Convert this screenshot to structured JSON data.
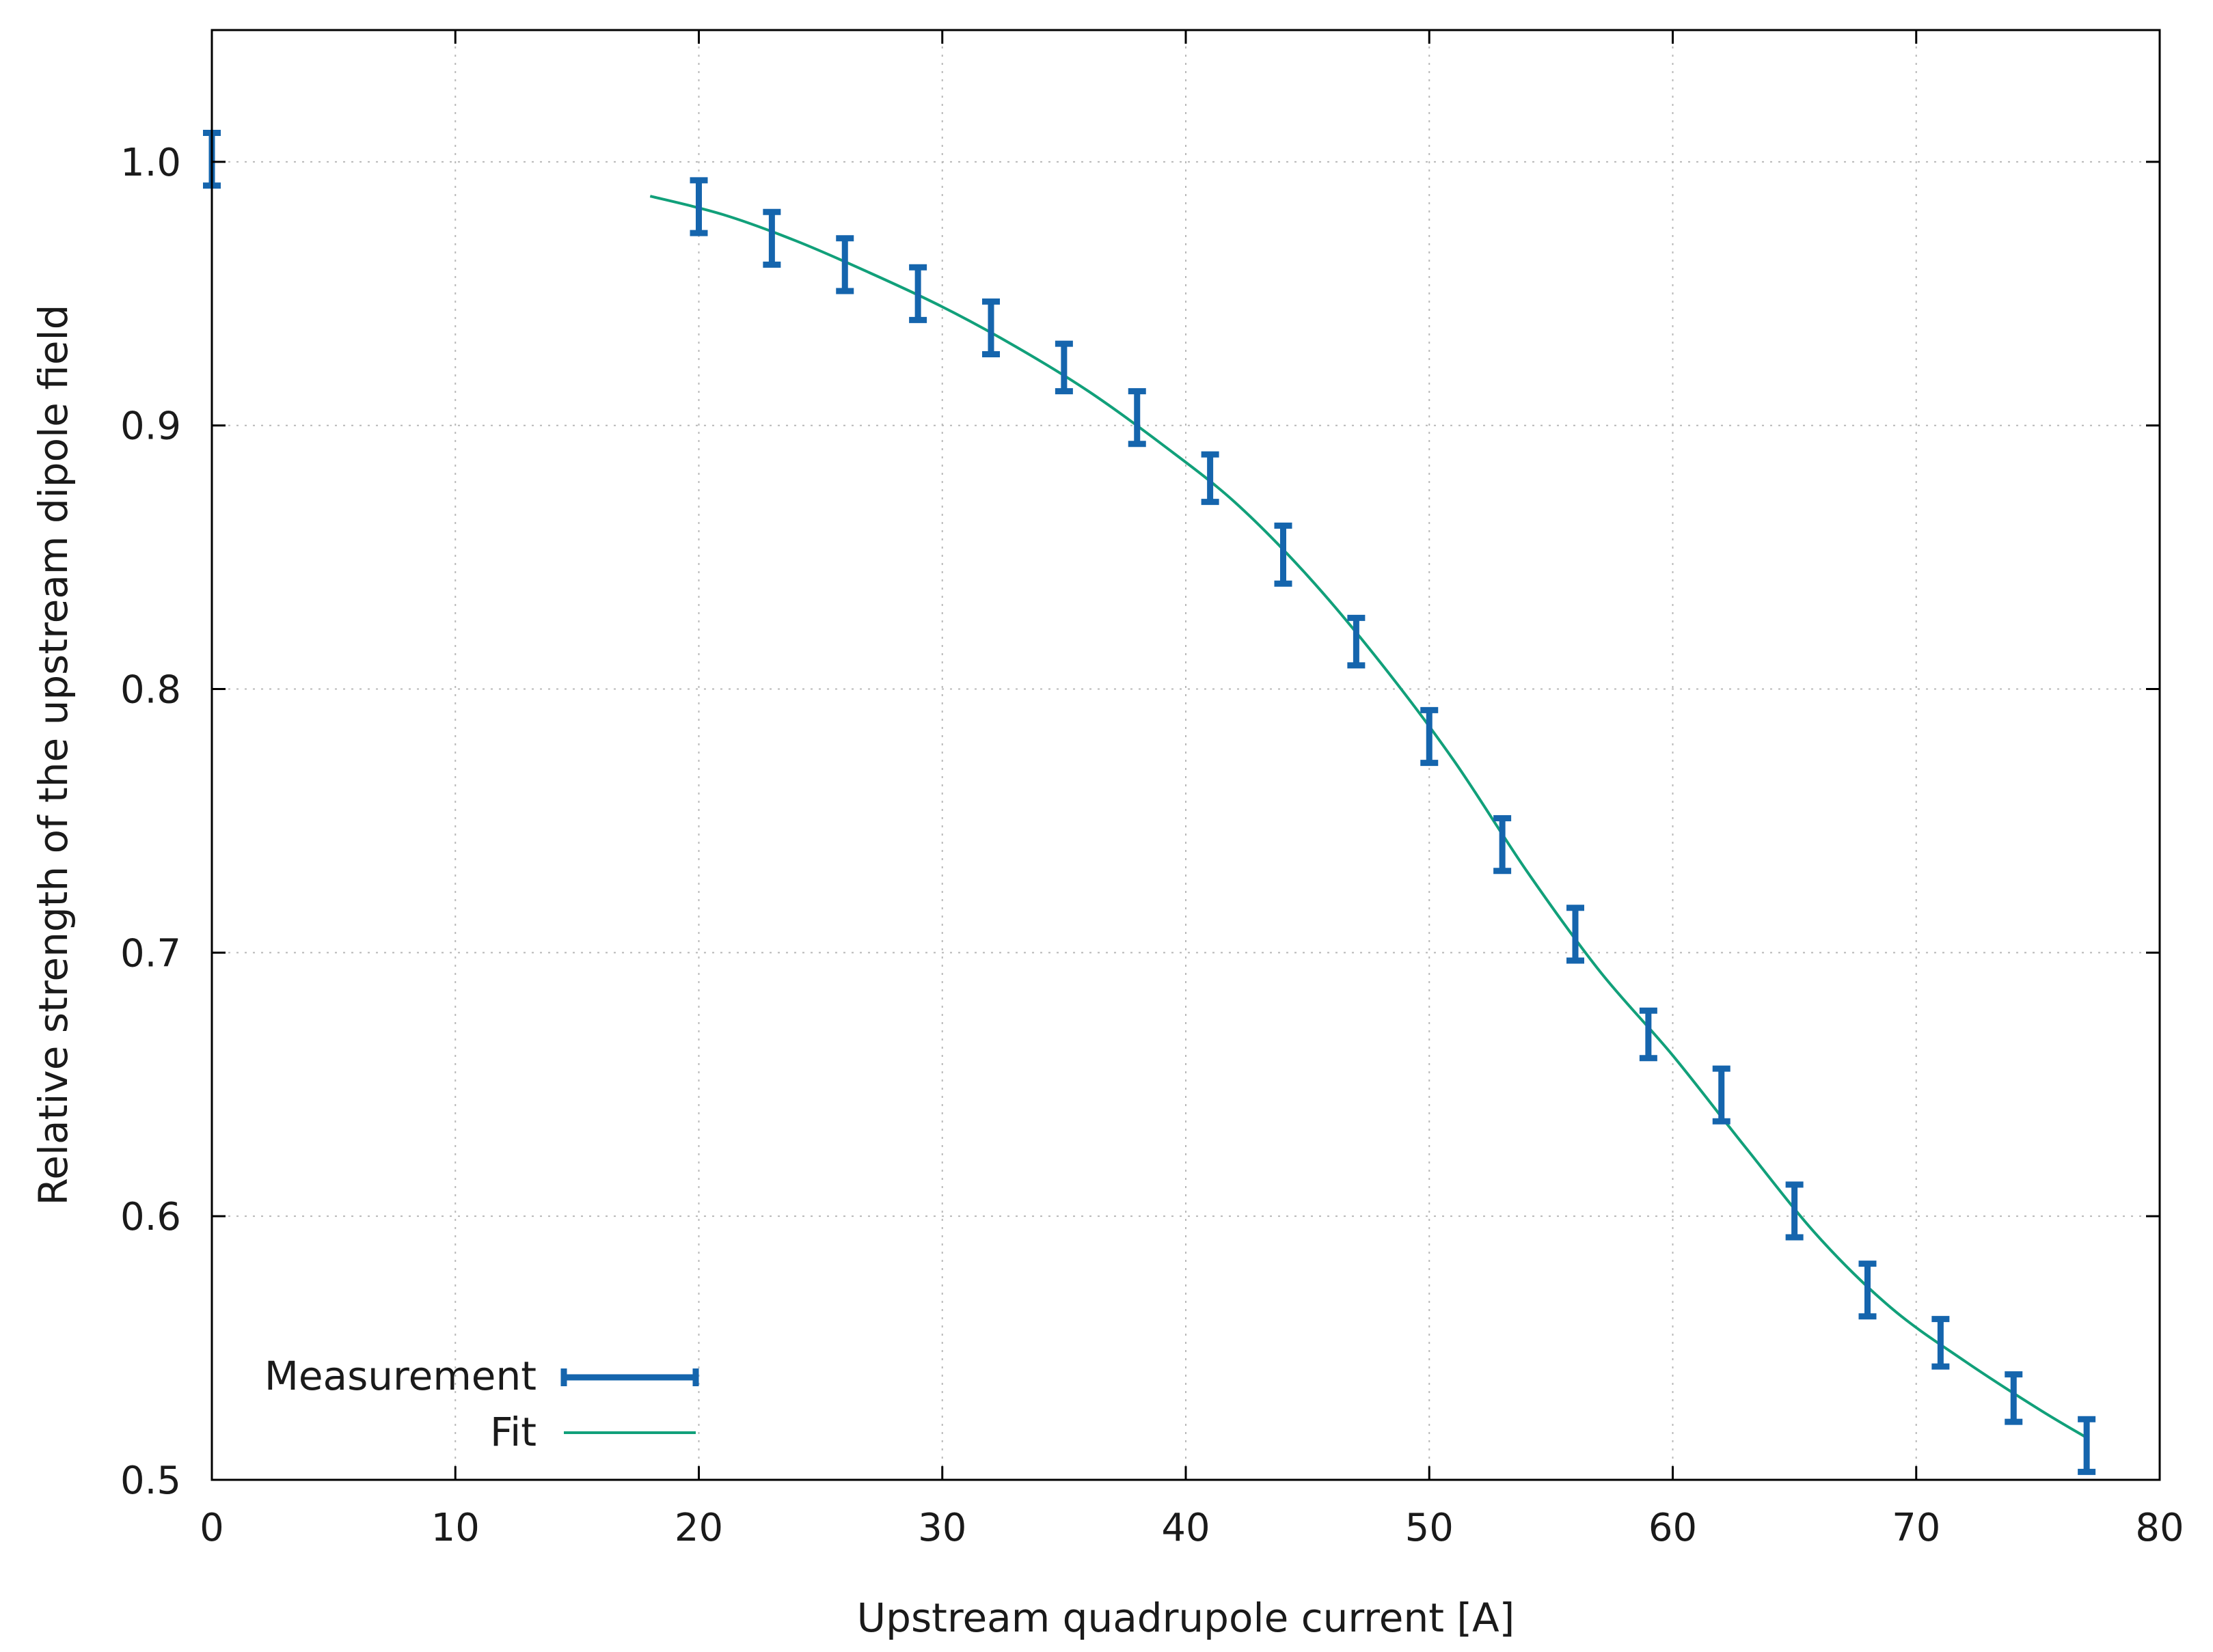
{
  "chart_data": {
    "type": "scatter",
    "title": "",
    "xlabel": "Upstream quadrupole current [A]",
    "ylabel": "Relative strength of the upstream dipole field",
    "xlim": [
      0,
      80
    ],
    "ylim": [
      0.5,
      1.05
    ],
    "grid": true,
    "legend_position": "bottom-left",
    "x_ticks": [
      0,
      10,
      20,
      30,
      40,
      50,
      60,
      70,
      80
    ],
    "x_tick_labels": [
      "0",
      "10",
      "20",
      "30",
      "40",
      "50",
      "60",
      "70",
      "80"
    ],
    "y_ticks": [
      0.5,
      0.6,
      0.7,
      0.8,
      0.9,
      1.0
    ],
    "y_tick_labels": [
      "0.5",
      "0.6",
      "0.7",
      "0.8",
      "0.9",
      "1.0"
    ],
    "series": [
      {
        "name": "Measurement",
        "type": "errorbars",
        "color": "#1565ad",
        "x": [
          0,
          20,
          23,
          26,
          29,
          32,
          35,
          38,
          41,
          44,
          47,
          50,
          53,
          56,
          59,
          62,
          65,
          68,
          71,
          74,
          77
        ],
        "y": [
          1.001,
          0.983,
          0.971,
          0.961,
          0.95,
          0.937,
          0.922,
          0.903,
          0.88,
          0.851,
          0.818,
          0.782,
          0.741,
          0.707,
          0.669,
          0.646,
          0.602,
          0.572,
          0.552,
          0.531,
          0.513
        ],
        "err": [
          0.01,
          0.01,
          0.01,
          0.01,
          0.01,
          0.01,
          0.009,
          0.01,
          0.009,
          0.011,
          0.009,
          0.01,
          0.01,
          0.01,
          0.009,
          0.01,
          0.01,
          0.01,
          0.009,
          0.009,
          0.01
        ]
      },
      {
        "name": "Fit",
        "type": "line",
        "color": "#11a07a",
        "x": [
          18,
          21,
          24,
          27,
          30,
          33,
          36,
          39,
          42,
          45,
          48,
          51,
          54,
          57,
          60,
          63,
          66,
          69,
          72,
          75,
          77
        ],
        "y": [
          0.987,
          0.98,
          0.97,
          0.958,
          0.945,
          0.93,
          0.913,
          0.893,
          0.871,
          0.843,
          0.81,
          0.773,
          0.731,
          0.693,
          0.661,
          0.626,
          0.592,
          0.565,
          0.545,
          0.527,
          0.516
        ]
      }
    ]
  }
}
